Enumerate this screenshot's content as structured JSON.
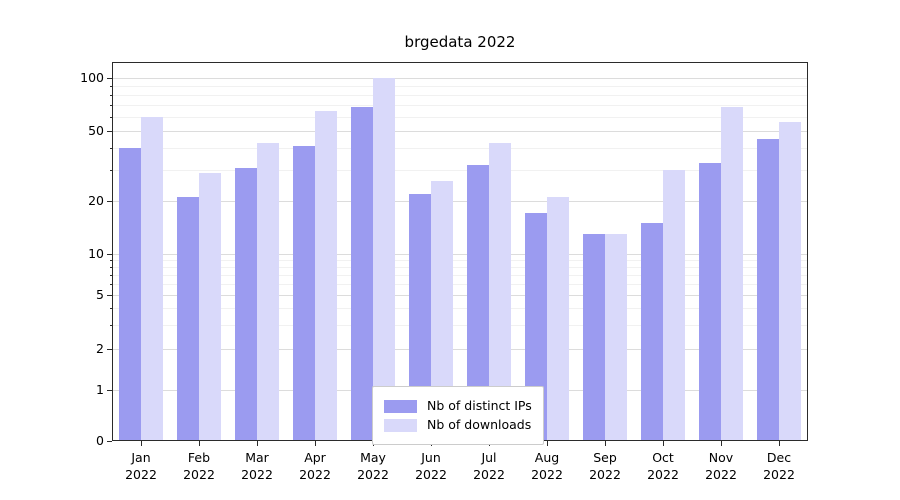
{
  "chart_data": {
    "type": "bar",
    "title": "brgedata 2022",
    "year_label": "2022",
    "months": [
      "Jan",
      "Feb",
      "Mar",
      "Apr",
      "May",
      "Jun",
      "Jul",
      "Aug",
      "Sep",
      "Oct",
      "Nov",
      "Dec"
    ],
    "series": [
      {
        "name": "Nb of distinct IPs",
        "color": "#9b9bf0",
        "values": [
          40,
          21,
          31,
          41,
          68,
          22,
          32,
          17,
          13,
          15,
          33,
          45
        ]
      },
      {
        "name": "Nb of downloads",
        "color": "#d9d9fa",
        "values": [
          60,
          29,
          43,
          65,
          100,
          26,
          43,
          21,
          13,
          30,
          68,
          56
        ]
      }
    ],
    "yticks": [
      0,
      1,
      2,
      5,
      10,
      20,
      50,
      100
    ],
    "minor_yticks": [
      3,
      4,
      6,
      7,
      8,
      9,
      30,
      40,
      60,
      70,
      80,
      90
    ],
    "scale": "symlog",
    "ylim": [
      0,
      100
    ],
    "grid": true,
    "legend_position": "lower center"
  }
}
